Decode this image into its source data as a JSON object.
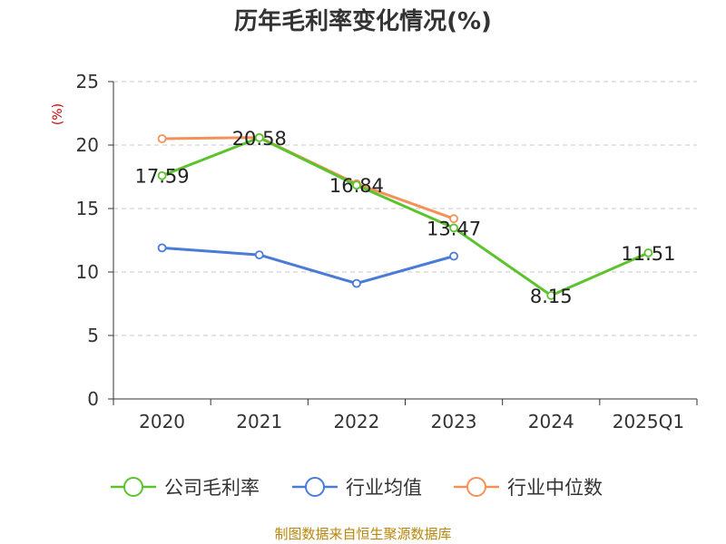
{
  "chart_data": {
    "type": "line",
    "title": "历年毛利率变化情况(%)",
    "ylabel": "(%)",
    "categories": [
      "2020",
      "2021",
      "2022",
      "2023",
      "2024",
      "2025Q1"
    ],
    "ylim": [
      0,
      25
    ],
    "yticks": [
      "0",
      "5",
      "10",
      "15",
      "20",
      "25"
    ],
    "grid": true,
    "legend_position": "bottom",
    "series": [
      {
        "name": "公司毛利率",
        "color": "#5cc32f",
        "values": [
          17.59,
          20.58,
          16.84,
          13.47,
          8.15,
          11.51
        ],
        "labels": [
          "17.59",
          "20.58",
          "16.84",
          "13.47",
          "8.15",
          "11.51"
        ]
      },
      {
        "name": "行业均值",
        "color": "#4a7bd6",
        "values": [
          11.9,
          11.35,
          9.1,
          11.25,
          null,
          null
        ]
      },
      {
        "name": "行业中位数",
        "color": "#f2925a",
        "values": [
          20.5,
          20.6,
          16.95,
          14.2,
          null,
          null
        ]
      }
    ],
    "source": "制图数据来自恒生聚源数据库"
  }
}
